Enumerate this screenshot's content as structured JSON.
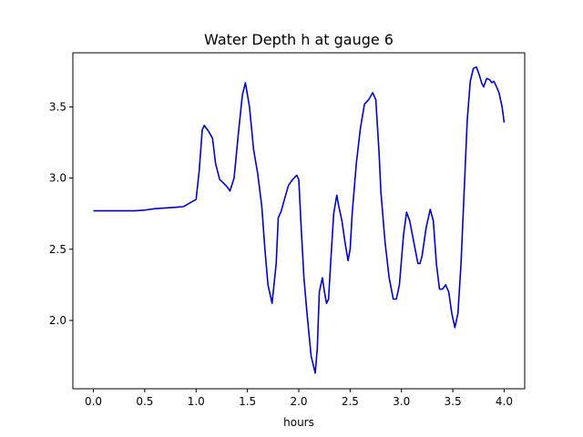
{
  "chart_data": {
    "type": "line",
    "title": "Water Depth h at gauge 6",
    "xlabel": "hours",
    "ylabel": "",
    "xlim": [
      -0.2,
      4.2
    ],
    "ylim": [
      1.52,
      3.88
    ],
    "xticks": [
      0.0,
      0.5,
      1.0,
      1.5,
      2.0,
      2.5,
      3.0,
      3.5,
      4.0
    ],
    "xtick_labels": [
      "0.0",
      "0.5",
      "1.0",
      "1.5",
      "2.0",
      "2.5",
      "3.0",
      "3.5",
      "4.0"
    ],
    "yticks": [
      2.0,
      2.5,
      3.0,
      3.5
    ],
    "ytick_labels": [
      "2.0",
      "2.5",
      "3.0",
      "3.5"
    ],
    "grid": false,
    "legend": "none",
    "series": [
      {
        "color": "#0000cc",
        "x": [
          0.0,
          0.2,
          0.4,
          0.5,
          0.6,
          0.7,
          0.8,
          0.88,
          0.95,
          1.0,
          1.03,
          1.06,
          1.08,
          1.12,
          1.16,
          1.19,
          1.23,
          1.26,
          1.3,
          1.33,
          1.37,
          1.41,
          1.45,
          1.48,
          1.52,
          1.56,
          1.6,
          1.64,
          1.67,
          1.7,
          1.74,
          1.78,
          1.8,
          1.83,
          1.86,
          1.9,
          1.94,
          1.98,
          2.0,
          2.02,
          2.05,
          2.08,
          2.12,
          2.16,
          2.18,
          2.2,
          2.23,
          2.25,
          2.27,
          2.29,
          2.31,
          2.34,
          2.37,
          2.39,
          2.42,
          2.45,
          2.48,
          2.5,
          2.52,
          2.56,
          2.6,
          2.64,
          2.68,
          2.72,
          2.75,
          2.78,
          2.8,
          2.84,
          2.88,
          2.92,
          2.95,
          2.98,
          3.02,
          3.05,
          3.08,
          3.12,
          3.16,
          3.18,
          3.2,
          3.24,
          3.28,
          3.31,
          3.34,
          3.37,
          3.4,
          3.43,
          3.46,
          3.49,
          3.52,
          3.55,
          3.58,
          3.61,
          3.64,
          3.67,
          3.7,
          3.73,
          3.76,
          3.78,
          3.8,
          3.83,
          3.86,
          3.88,
          3.9,
          3.92,
          3.95,
          3.98,
          4.0
        ],
        "y": [
          2.77,
          2.77,
          2.77,
          2.775,
          2.785,
          2.79,
          2.795,
          2.8,
          2.83,
          2.85,
          3.05,
          3.34,
          3.37,
          3.33,
          3.28,
          3.1,
          2.99,
          2.97,
          2.94,
          2.91,
          3.0,
          3.3,
          3.58,
          3.67,
          3.5,
          3.2,
          3.03,
          2.8,
          2.5,
          2.25,
          2.12,
          2.4,
          2.72,
          2.77,
          2.85,
          2.95,
          2.99,
          3.02,
          2.99,
          2.7,
          2.3,
          2.05,
          1.75,
          1.63,
          1.8,
          2.2,
          2.3,
          2.2,
          2.12,
          2.15,
          2.4,
          2.75,
          2.88,
          2.8,
          2.7,
          2.55,
          2.42,
          2.5,
          2.75,
          3.1,
          3.35,
          3.52,
          3.55,
          3.6,
          3.55,
          3.2,
          2.9,
          2.55,
          2.3,
          2.15,
          2.15,
          2.25,
          2.6,
          2.76,
          2.7,
          2.55,
          2.4,
          2.4,
          2.45,
          2.65,
          2.78,
          2.7,
          2.4,
          2.22,
          2.22,
          2.25,
          2.2,
          2.05,
          1.95,
          2.05,
          2.4,
          2.9,
          3.4,
          3.68,
          3.77,
          3.78,
          3.72,
          3.67,
          3.64,
          3.7,
          3.69,
          3.67,
          3.68,
          3.65,
          3.6,
          3.5,
          3.39
        ]
      }
    ]
  }
}
